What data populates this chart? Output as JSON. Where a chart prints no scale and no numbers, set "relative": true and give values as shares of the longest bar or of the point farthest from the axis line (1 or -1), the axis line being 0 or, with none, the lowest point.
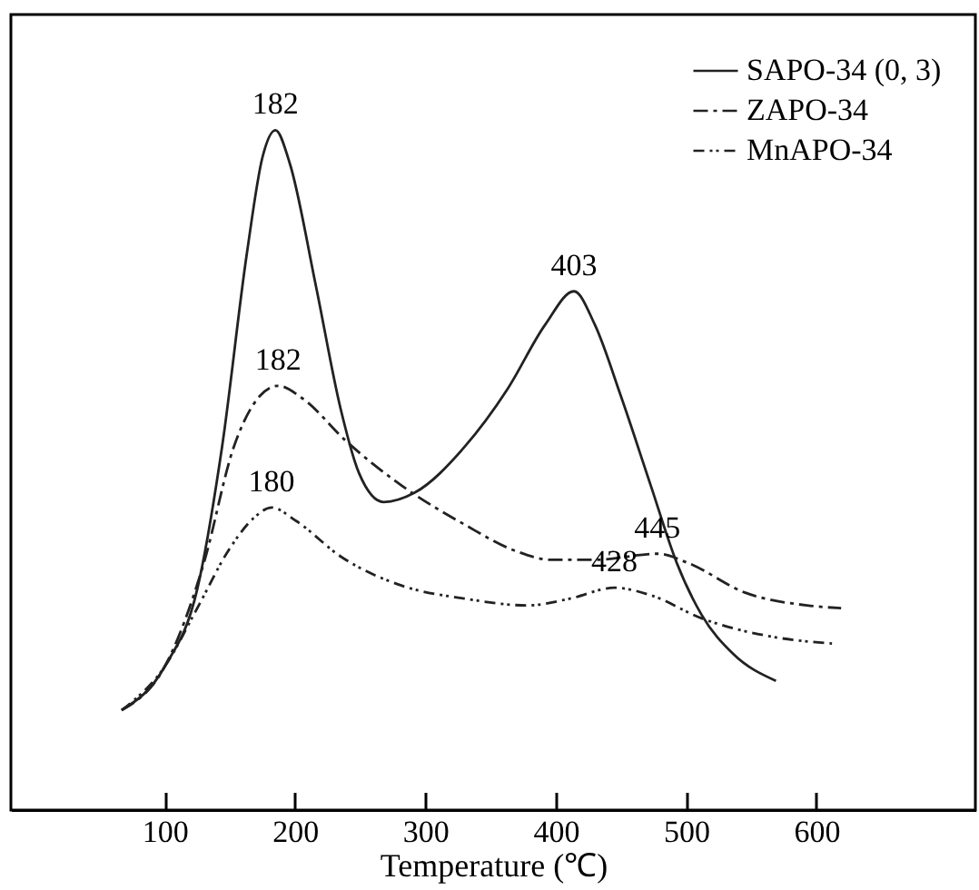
{
  "chart_data": {
    "type": "line",
    "relative": true,
    "xlabel": "Temperature (℃)",
    "xlim": [
      -18,
      722
    ],
    "xticks": [
      100,
      200,
      300,
      400,
      500,
      600
    ],
    "legend": "top right",
    "grid": false,
    "marker": "none",
    "series": [
      {
        "name": "SAPO-34 (0, 3)",
        "color": "#222222",
        "line_style": "solid",
        "x": [
          67,
          100,
          125,
          144,
          163,
          175,
          185,
          196,
          216,
          235,
          249,
          268,
          292,
          330,
          363,
          392,
          414,
          430,
          450,
          473,
          493,
          512,
          536,
          569
        ],
        "values": [
          0.147,
          0.211,
          0.325,
          0.534,
          0.818,
          0.96,
          1.0,
          0.951,
          0.771,
          0.59,
          0.496,
          0.453,
          0.467,
          0.534,
          0.619,
          0.714,
          0.763,
          0.714,
          0.609,
          0.477,
          0.363,
          0.287,
          0.23,
          0.19
        ]
      },
      {
        "name": "ZAPO-34",
        "color": "#222222",
        "line_style": "dashed",
        "x": [
          67,
          100,
          130,
          153,
          173,
          187,
          206,
          239,
          282,
          330,
          368,
          397,
          430,
          478,
          502,
          545,
          593,
          619
        ],
        "values": [
          0.147,
          0.211,
          0.363,
          0.534,
          0.609,
          0.624,
          0.605,
          0.543,
          0.477,
          0.42,
          0.382,
          0.368,
          0.368,
          0.377,
          0.363,
          0.32,
          0.301,
          0.297
        ]
      },
      {
        "name": "MnAPO-34",
        "color": "#222222",
        "line_style": "dotted",
        "x": [
          67,
          100,
          125,
          149,
          168,
          182,
          201,
          235,
          282,
          330,
          378,
          411,
          445,
          473,
          512,
          569,
          612
        ],
        "values": [
          0.147,
          0.211,
          0.297,
          0.382,
          0.429,
          0.445,
          0.425,
          0.373,
          0.33,
          0.311,
          0.301,
          0.311,
          0.327,
          0.316,
          0.282,
          0.254,
          0.245
        ]
      }
    ],
    "annotations": [
      {
        "text": "182",
        "x": 185,
        "y": 1.0
      },
      {
        "text": "403",
        "x": 414,
        "y": 0.763
      },
      {
        "text": "182",
        "x": 187,
        "y": 0.624
      },
      {
        "text": "180",
        "x": 182,
        "y": 0.445
      },
      {
        "text": "445",
        "x": 478,
        "y": 0.377
      },
      {
        "text": "428",
        "x": 445,
        "y": 0.327
      }
    ]
  }
}
